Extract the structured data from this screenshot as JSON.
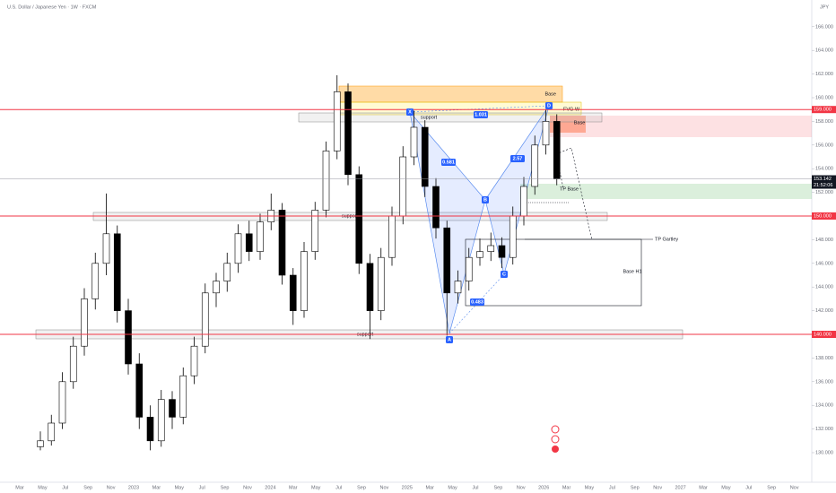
{
  "chart_data": {
    "type": "candlestick",
    "title": "U.S. Dollar / Japanese Yen · 1W · FXCM",
    "currency": "JPY",
    "x_labels": [
      "Mar",
      "May",
      "Jul",
      "Sep",
      "Nov",
      "2023",
      "Mar",
      "May",
      "Jul",
      "Sep",
      "Nov",
      "2024",
      "Mar",
      "May",
      "Jul",
      "Sep",
      "Nov",
      "2025",
      "Mar",
      "May",
      "Jul",
      "Sep",
      "Nov",
      "2026",
      "Mar",
      "May",
      "Jul",
      "Sep",
      "Nov",
      "2027",
      "Mar",
      "May",
      "Jul",
      "Sep",
      "Nov"
    ],
    "candles": [
      [
        130.5,
        131.8,
        130.2,
        131.0
      ],
      [
        131.0,
        133.2,
        130.6,
        132.5
      ],
      [
        132.5,
        136.8,
        132.0,
        136.0
      ],
      [
        136.0,
        139.8,
        135.4,
        139.0
      ],
      [
        139.0,
        143.9,
        138.2,
        143.0
      ],
      [
        143.0,
        146.9,
        142.1,
        146.0
      ],
      [
        146.0,
        151.9,
        145.0,
        148.5
      ],
      [
        148.5,
        149.2,
        141.0,
        142.0
      ],
      [
        142.0,
        143.0,
        136.6,
        137.5
      ],
      [
        137.5,
        138.4,
        132.0,
        133.0
      ],
      [
        133.0,
        134.0,
        130.2,
        131.0
      ],
      [
        131.0,
        135.3,
        130.5,
        134.5
      ],
      [
        134.5,
        135.2,
        132.0,
        133.0
      ],
      [
        133.0,
        137.2,
        132.4,
        136.5
      ],
      [
        136.5,
        139.8,
        135.8,
        139.0
      ],
      [
        139.0,
        144.3,
        138.4,
        143.5
      ],
      [
        143.5,
        145.2,
        142.3,
        144.5
      ],
      [
        144.5,
        146.9,
        143.6,
        146.0
      ],
      [
        146.0,
        149.3,
        145.2,
        148.5
      ],
      [
        148.5,
        149.6,
        146.2,
        147.0
      ],
      [
        147.0,
        150.2,
        146.3,
        149.5
      ],
      [
        149.5,
        151.9,
        148.8,
        150.5
      ],
      [
        150.5,
        151.1,
        144.2,
        145.0
      ],
      [
        145.0,
        145.6,
        140.8,
        142.0
      ],
      [
        142.0,
        147.8,
        141.4,
        147.0
      ],
      [
        147.0,
        151.2,
        146.3,
        150.5
      ],
      [
        150.5,
        156.3,
        149.9,
        155.5
      ],
      [
        155.5,
        161.9,
        154.8,
        160.5
      ],
      [
        160.5,
        161.2,
        152.6,
        153.5
      ],
      [
        153.5,
        154.2,
        145.1,
        146.0
      ],
      [
        146.0,
        146.8,
        139.6,
        142.0
      ],
      [
        142.0,
        147.3,
        141.2,
        146.5
      ],
      [
        146.5,
        150.8,
        145.8,
        150.0
      ],
      [
        150.0,
        155.9,
        149.3,
        155.0
      ],
      [
        155.0,
        158.9,
        154.3,
        157.5
      ],
      [
        157.5,
        158.1,
        151.6,
        152.5
      ],
      [
        152.5,
        153.2,
        148.1,
        149.0
      ],
      [
        149.0,
        149.6,
        139.9,
        143.5
      ],
      [
        143.5,
        145.4,
        142.6,
        144.5
      ],
      [
        144.5,
        147.3,
        143.7,
        146.5
      ],
      [
        146.5,
        148.1,
        145.8,
        147.0
      ],
      [
        147.0,
        148.6,
        146.2,
        147.5
      ],
      [
        147.5,
        148.2,
        145.6,
        146.5
      ],
      [
        146.5,
        150.8,
        145.9,
        150.0
      ],
      [
        150.0,
        153.3,
        149.2,
        152.5
      ],
      [
        152.5,
        156.8,
        151.8,
        156.0
      ],
      [
        156.0,
        159.0,
        155.2,
        158.0
      ],
      [
        158.0,
        158.6,
        152.6,
        153.142
      ]
    ],
    "up_color": "#ffffff",
    "down_color": "#000000",
    "ylim": [
      130,
      167
    ],
    "yticks": [
      {
        "value": 130,
        "label": "130.000"
      },
      {
        "value": 132,
        "label": "132.000"
      },
      {
        "value": 134,
        "label": "134.000"
      },
      {
        "value": 136,
        "label": "136.000"
      },
      {
        "value": 138,
        "label": "138.000"
      },
      {
        "value": 142,
        "label": "142.000"
      },
      {
        "value": 144,
        "label": "144.000"
      },
      {
        "value": 146,
        "label": "146.000"
      },
      {
        "value": 148,
        "label": "148.000"
      },
      {
        "value": 152,
        "label": "152.000"
      },
      {
        "value": 154,
        "label": "154.000"
      },
      {
        "value": 156,
        "label": "156.000"
      },
      {
        "value": 158,
        "label": "158.000"
      },
      {
        "value": 160,
        "label": "160.000"
      },
      {
        "value": 162,
        "label": "162.000"
      },
      {
        "value": 164,
        "label": "164.000"
      },
      {
        "value": 166,
        "label": "166.000"
      }
    ],
    "grid": false,
    "levels": [
      {
        "value": 159,
        "label": "159.000",
        "color": "#f23645"
      },
      {
        "value": 150,
        "label": "150.000",
        "color": "#f23645"
      },
      {
        "value": 140,
        "label": "140.000",
        "color": "#f23645"
      }
    ],
    "last_price": {
      "value": 153.142,
      "label": "153.142",
      "countdown": "21:52:06"
    },
    "zones": [
      "Base",
      "FVG W",
      "Base",
      "support",
      "support",
      "support",
      "Base H1"
    ],
    "targets": [
      "TP Gartley",
      "TP Base"
    ],
    "pattern": {
      "points": [
        "X",
        "A",
        "B",
        "C",
        "D"
      ],
      "ratios": [
        "1.031",
        "0.581",
        "2.57",
        "0.483"
      ]
    }
  }
}
